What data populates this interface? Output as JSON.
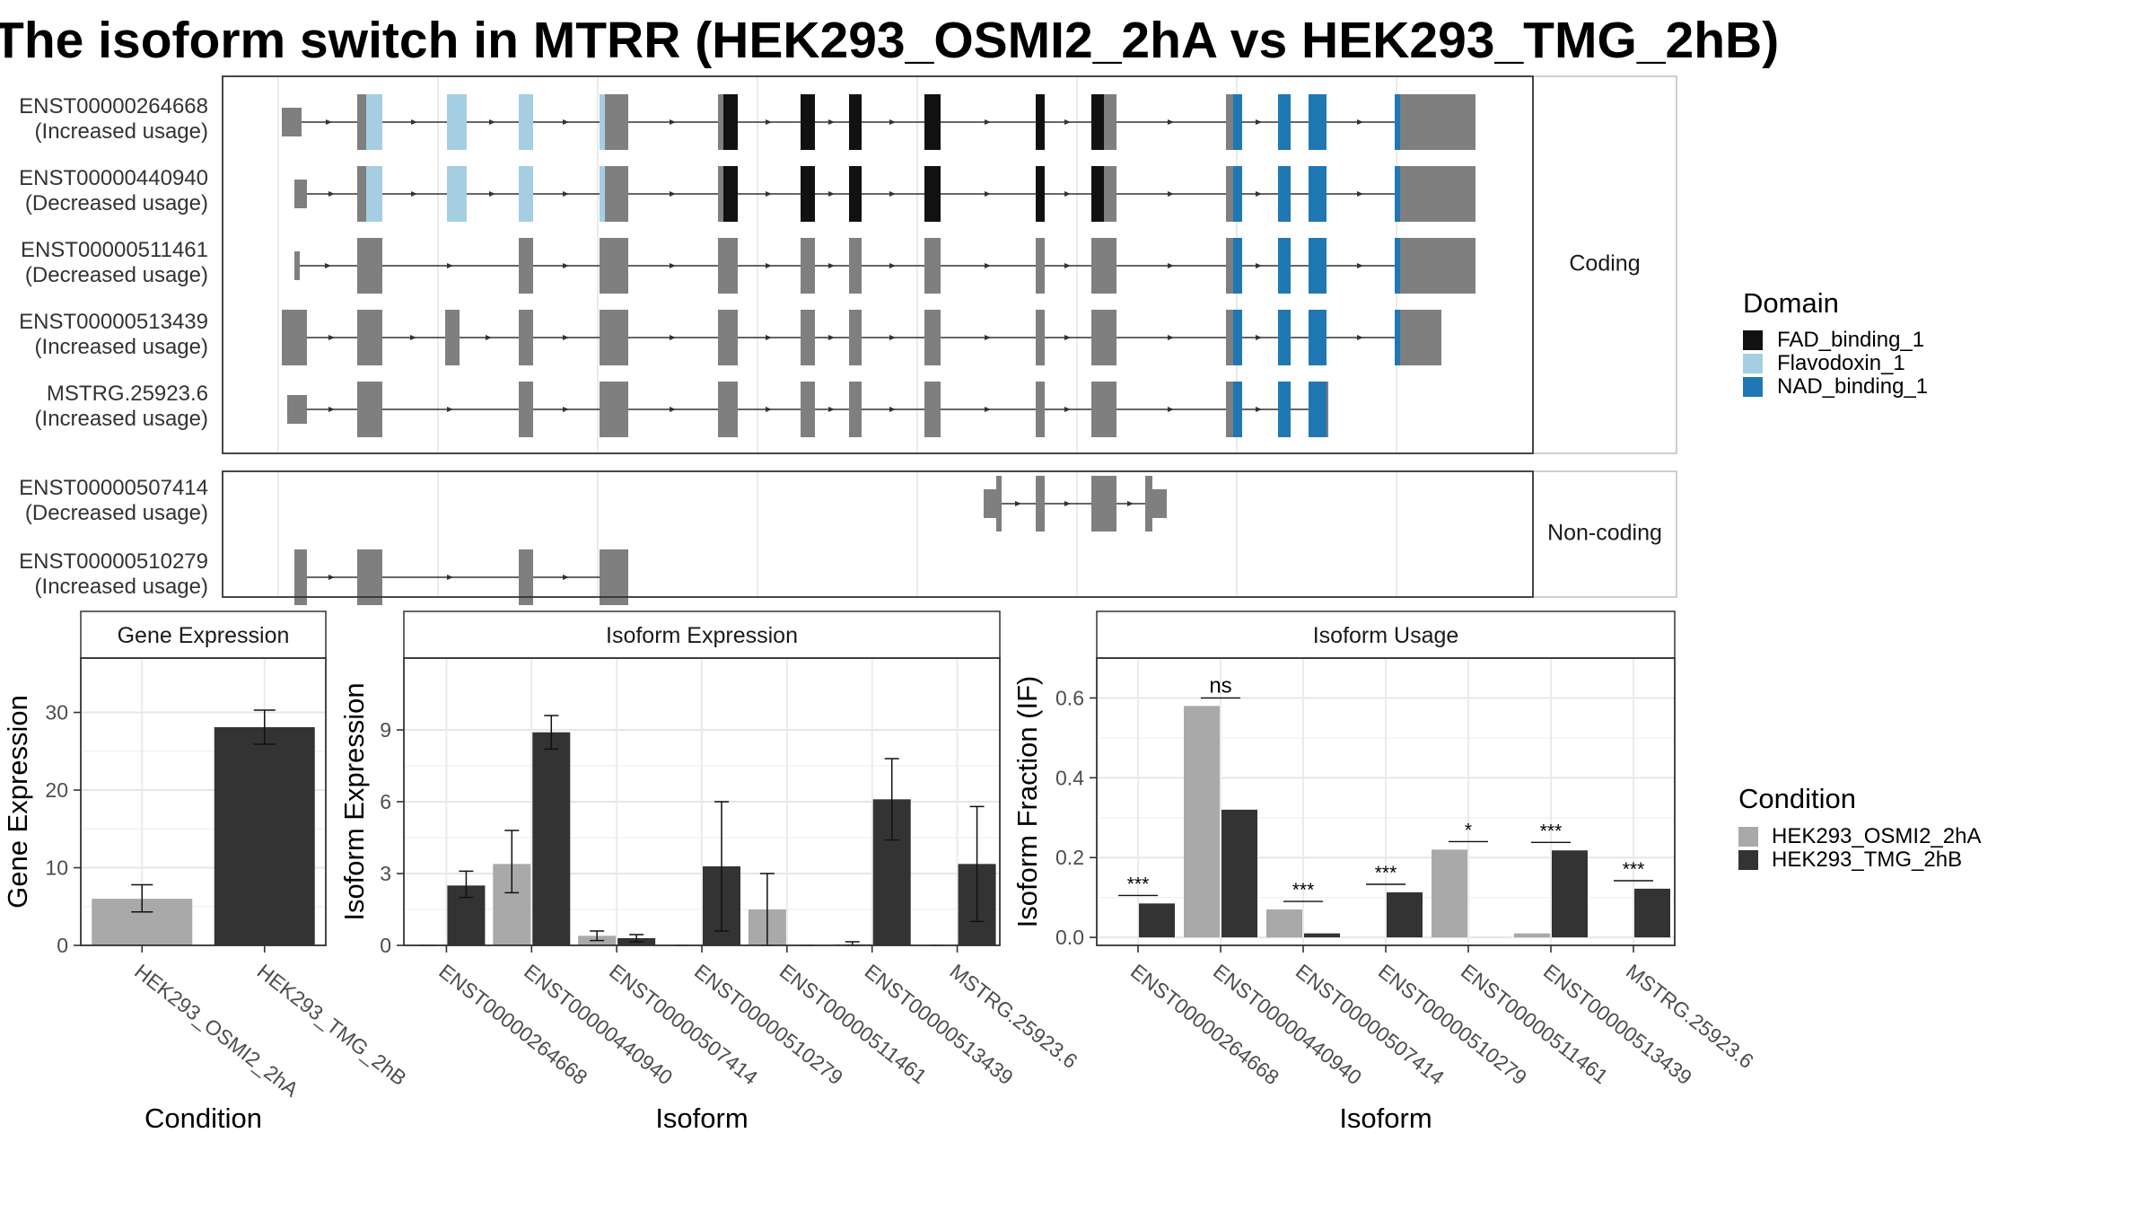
{
  "title": "The isoform switch in MTRR (HEK293_OSMI2_2hA vs HEK293_TMG_2hB)",
  "colors": {
    "FAD_binding_1": "#111111",
    "Flavodoxin_1": "#a6cee3",
    "NAD_binding_1": "#1f78b4",
    "exon": "#7f7f7f",
    "cond1": "#a9a9a9",
    "cond2": "#333333"
  },
  "structure": {
    "facets": [
      "Coding",
      "Non-coding"
    ],
    "domain_legend": {
      "title": "Domain",
      "items": [
        "FAD_binding_1",
        "Flavodoxin_1",
        "NAD_binding_1"
      ]
    },
    "transcripts": [
      {
        "id": "ENST00000264668",
        "usage": "(Increased usage)",
        "group": "Coding"
      },
      {
        "id": "ENST00000440940",
        "usage": "(Decreased usage)",
        "group": "Coding"
      },
      {
        "id": "ENST00000511461",
        "usage": "(Decreased usage)",
        "group": "Coding"
      },
      {
        "id": "ENST00000513439",
        "usage": "(Increased usage)",
        "group": "Coding"
      },
      {
        "id": "MSTRG.25923.6",
        "usage": "(Increased usage)",
        "group": "Coding"
      },
      {
        "id": "ENST00000507414",
        "usage": "(Decreased usage)",
        "group": "Non-coding"
      },
      {
        "id": "ENST00000510279",
        "usage": "(Increased usage)",
        "group": "Non-coding"
      }
    ]
  },
  "chart_data": [
    {
      "type": "bar",
      "panel": "Gene Expression",
      "xlabel": "Condition",
      "ylabel": "Gene Expression",
      "categories": [
        "HEK293_OSMI2_2hA",
        "HEK293_TMG_2hB"
      ],
      "values": [
        6.0,
        28.1
      ],
      "err_low": [
        4.3,
        25.9
      ],
      "err_high": [
        7.8,
        30.3
      ],
      "ylim": [
        0,
        37
      ],
      "yticks": [
        0,
        10,
        20,
        30
      ]
    },
    {
      "type": "bar",
      "panel": "Isoform Expression",
      "xlabel": "Isoform",
      "ylabel": "Isoform Expression",
      "categories": [
        "ENST00000264668",
        "ENST00000440940",
        "ENST00000507414",
        "ENST00000510279",
        "ENST00000511461",
        "ENST00000513439",
        "MSTRG.25923.6"
      ],
      "series": [
        {
          "name": "HEK293_OSMI2_2hA",
          "values": [
            0.0,
            3.4,
            0.4,
            0.0,
            1.5,
            0.05,
            0.0
          ],
          "err_low": [
            0.0,
            2.2,
            0.2,
            0.0,
            0.0,
            0.0,
            0.0
          ],
          "err_high": [
            0.0,
            4.8,
            0.6,
            0.0,
            3.0,
            0.15,
            0.0
          ]
        },
        {
          "name": "HEK293_TMG_2hB",
          "values": [
            2.5,
            8.9,
            0.3,
            3.3,
            0.0,
            6.1,
            3.4
          ],
          "err_low": [
            2.0,
            8.2,
            0.15,
            0.6,
            0.0,
            4.4,
            1.0
          ],
          "err_high": [
            3.1,
            9.6,
            0.45,
            6.0,
            0.0,
            7.8,
            5.8
          ]
        }
      ],
      "ylim": [
        0,
        12
      ],
      "yticks": [
        0,
        3,
        6,
        9
      ]
    },
    {
      "type": "bar",
      "panel": "Isoform Usage",
      "xlabel": "Isoform",
      "ylabel": "Isoform Fraction (IF)",
      "categories": [
        "ENST00000264668",
        "ENST00000440940",
        "ENST00000507414",
        "ENST00000510279",
        "ENST00000511461",
        "ENST00000513439",
        "MSTRG.25923.6"
      ],
      "series": [
        {
          "name": "HEK293_OSMI2_2hA",
          "values": [
            0.0,
            0.58,
            0.07,
            0.0,
            0.22,
            0.01,
            0.0
          ]
        },
        {
          "name": "HEK293_TMG_2hB",
          "values": [
            0.085,
            0.32,
            0.01,
            0.113,
            0.0,
            0.218,
            0.122
          ]
        }
      ],
      "significance": [
        "***",
        "ns",
        "***",
        "***",
        "*",
        "***",
        "***"
      ],
      "ylim": [
        -0.02,
        0.7
      ],
      "yticks": [
        0.0,
        0.2,
        0.4,
        0.6
      ]
    }
  ],
  "condition_legend": {
    "title": "Condition",
    "items": [
      "HEK293_OSMI2_2hA",
      "HEK293_TMG_2hB"
    ]
  }
}
